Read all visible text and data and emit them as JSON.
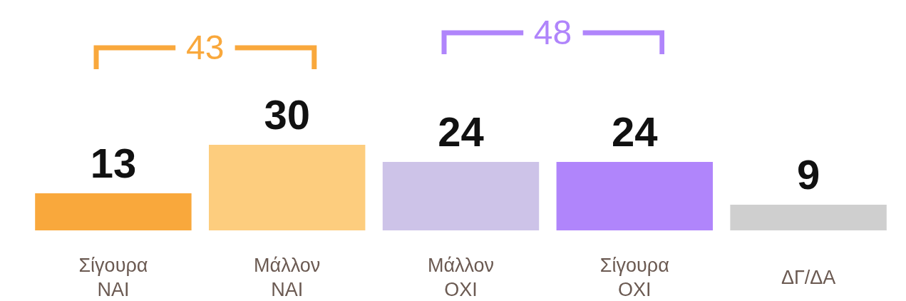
{
  "chart_data": {
    "type": "bar",
    "categories": [
      "Σίγουρα ΝΑΙ",
      "Μάλλον ΝΑΙ",
      "Μάλλον ΟΧΙ",
      "Σίγουρα ΟΧΙ",
      "ΔΓ/ΔΑ"
    ],
    "values": [
      13,
      30,
      24,
      24,
      9
    ],
    "colors": [
      "#f9a83c",
      "#fdcd7e",
      "#cdc3e8",
      "#b085fb",
      "#cfcfcf"
    ],
    "tick_labels": "x",
    "data_labels": true,
    "legend": false,
    "annotations": [
      "43",
      "48"
    ]
  }
}
